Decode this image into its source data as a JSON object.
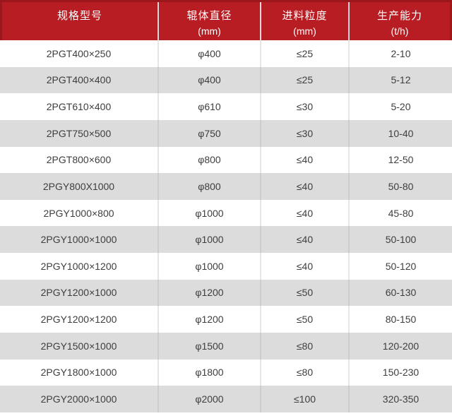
{
  "chart_data": {
    "type": "table",
    "title": "",
    "columns": [
      {
        "line1": "规格型号",
        "line2": ""
      },
      {
        "line1": "辊体直径",
        "line2": "(mm)"
      },
      {
        "line1": "进料粒度",
        "line2": "(mm)"
      },
      {
        "line1": "生产能力",
        "line2": "(t/h)"
      }
    ],
    "rows": [
      [
        "2PGT400×250",
        "φ400",
        "≤25",
        "2-10"
      ],
      [
        "2PGT400×400",
        "φ400",
        "≤25",
        "5-12"
      ],
      [
        "2PGT610×400",
        "φ610",
        "≤30",
        "5-20"
      ],
      [
        "2PGT750×500",
        "φ750",
        "≤30",
        "10-40"
      ],
      [
        "2PGT800×600",
        "φ800",
        "≤40",
        "12-50"
      ],
      [
        "2PGY800X1000",
        "φ800",
        "≤40",
        "50-80"
      ],
      [
        "2PGY1000×800",
        "φ1000",
        "≤40",
        "45-80"
      ],
      [
        "2PGY1000×1000",
        "φ1000",
        "≤40",
        "50-100"
      ],
      [
        "2PGY1000×1200",
        "φ1000",
        "≤40",
        "50-120"
      ],
      [
        "2PGY1200×1000",
        "φ1200",
        "≤50",
        "60-130"
      ],
      [
        "2PGY1200×1200",
        "φ1200",
        "≤50",
        "80-150"
      ],
      [
        "2PGY1500×1000",
        "φ1500",
        "≤80",
        "120-200"
      ],
      [
        "2PGY1800×1000",
        "φ1800",
        "≤80",
        "150-230"
      ],
      [
        "2PGY2000×1000",
        "φ2000",
        "≤100",
        "320-350"
      ]
    ],
    "layout": {
      "striped": true,
      "header_position": "top",
      "column_align": "center"
    },
    "colors": {
      "header_bg": "#b71d22",
      "header_border": "#9c171b",
      "header_text": "#ffffff",
      "row_bg": "#ffffff",
      "row_alt_bg": "#dcdcdc",
      "cell_text": "#3e3e3e",
      "divider_on_white": "#e6e6e6",
      "divider_on_gray": "#cdcdcd",
      "header_divider": "#d9d9d9"
    }
  }
}
